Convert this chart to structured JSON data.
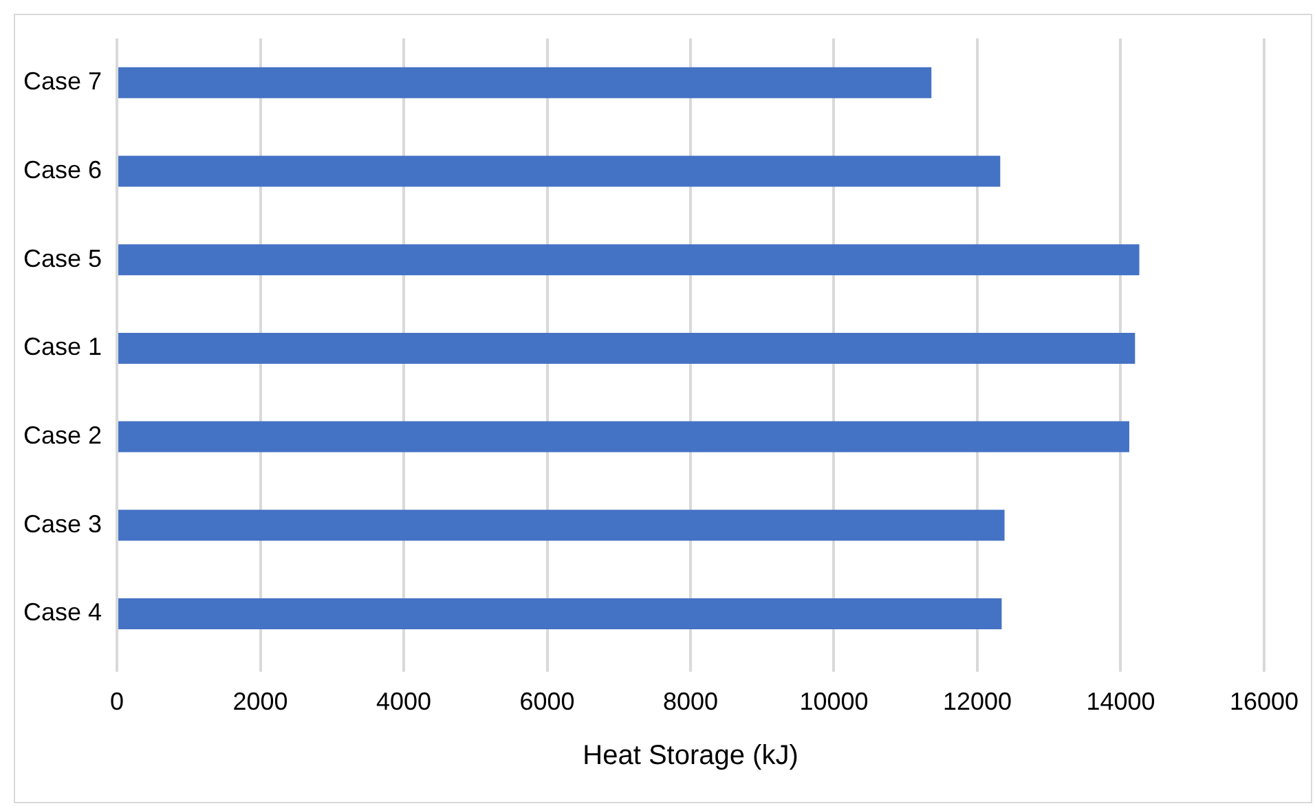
{
  "chart_data": {
    "type": "bar",
    "orientation": "horizontal",
    "xlabel": "Heat Storage (kJ)",
    "categories": [
      "Case 7",
      "Case 6",
      "Case 5",
      "Case 1",
      "Case 2",
      "Case 3",
      "Case 4"
    ],
    "values": [
      11360,
      12320,
      14260,
      14200,
      14120,
      12380,
      12340
    ],
    "color": "#4472c4",
    "xlim": [
      0,
      16000
    ],
    "xticks": [
      0,
      2000,
      4000,
      6000,
      8000,
      10000,
      12000,
      14000,
      16000
    ],
    "grid": "x",
    "legend": false
  }
}
